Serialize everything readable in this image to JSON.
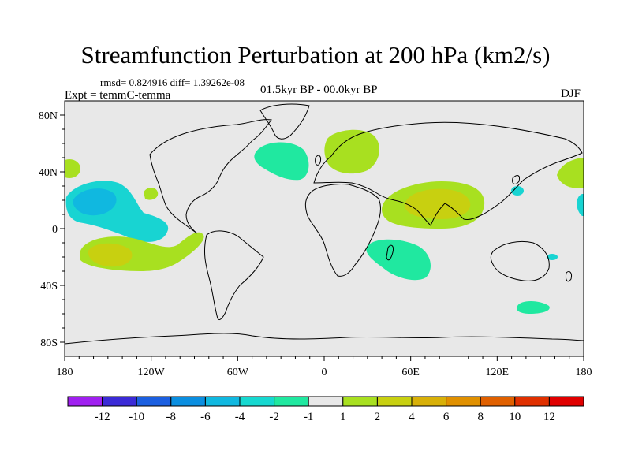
{
  "title": "Streamfunction Perturbation at 200 hPa (km2/s)",
  "stats": "rmsd= 0.824916 diff= 1.39262e-08",
  "experiment": "Expt = temmC-temma",
  "period": "01.5kyr BP - 00.0kyr BP",
  "season": "DJF",
  "map": {
    "lat_range": [
      -90,
      90
    ],
    "lon_range": [
      -180,
      180
    ],
    "lat_ticks": [
      "80N",
      "40N",
      "0",
      "40S",
      "80S"
    ],
    "lon_ticks": [
      "180",
      "120W",
      "60W",
      "0",
      "60E",
      "120E",
      "180"
    ],
    "background_color": "#e8e8e8"
  },
  "colorbar": {
    "colors": [
      "#a020f0",
      "#3b2bd6",
      "#1b5fe0",
      "#0a8ee0",
      "#10b8e0",
      "#16d8d0",
      "#20e8a0",
      "#e8e8e8",
      "#a8e020",
      "#c8d010",
      "#d8b008",
      "#e09000",
      "#e06000",
      "#e03000",
      "#e00000"
    ],
    "labels": [
      "-12",
      "-10",
      "-8",
      "-6",
      "-4",
      "-2",
      "-1",
      "1",
      "2",
      "4",
      "6",
      "8",
      "10",
      "12"
    ]
  },
  "anomalies": [
    {
      "name": "north-pacific-east-negative",
      "color": "#18d4d2"
    },
    {
      "name": "north-pacific-east-core",
      "color": "#10b8e0"
    },
    {
      "name": "north-pacific-west-negative",
      "color": "#18d4d2"
    },
    {
      "name": "north-atlantic-negative",
      "color": "#20e8a0"
    },
    {
      "name": "europe-positive",
      "color": "#a8e020"
    },
    {
      "name": "south-asia-positive",
      "color": "#a8e020"
    },
    {
      "name": "south-asia-core",
      "color": "#c8d010"
    },
    {
      "name": "madagascar-negative",
      "color": "#20e8a0"
    },
    {
      "name": "south-pacific-positive",
      "color": "#a8e020"
    },
    {
      "name": "south-pacific-core",
      "color": "#c8d010"
    },
    {
      "name": "west-pacific-positive",
      "color": "#a8e020"
    },
    {
      "name": "east-pacific-small-positive",
      "color": "#a8e020"
    },
    {
      "name": "australia-south-negative",
      "color": "#20e8a0"
    }
  ]
}
